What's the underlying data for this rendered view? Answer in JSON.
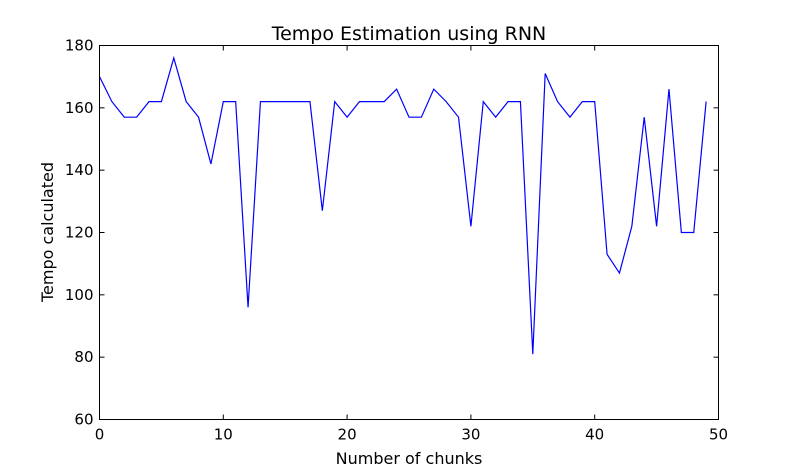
{
  "chart_data": {
    "type": "line",
    "title": "Tempo Estimation using RNN",
    "xlabel": "Number of chunks",
    "ylabel": "Tempo calculated",
    "xlim": [
      0,
      50
    ],
    "ylim": [
      60,
      180
    ],
    "xticks": [
      0,
      10,
      20,
      30,
      40,
      50
    ],
    "yticks": [
      60,
      80,
      100,
      120,
      140,
      160,
      180
    ],
    "grid": false,
    "line_color": "#0000ff",
    "series": [
      {
        "x": [
          0,
          1,
          2,
          3,
          4,
          5,
          6,
          7,
          8,
          9,
          10,
          11,
          12,
          13,
          14,
          15,
          16,
          17,
          18,
          19,
          20,
          21,
          22,
          23,
          24,
          25,
          26,
          27,
          28,
          29,
          30,
          31,
          32,
          33,
          34,
          35,
          36,
          37,
          38,
          39,
          40,
          41,
          42,
          43,
          44,
          45,
          46,
          47,
          48,
          49
        ],
        "values": [
          170,
          162,
          157,
          157,
          162,
          162,
          176,
          162,
          157,
          142,
          162,
          162,
          96,
          162,
          162,
          162,
          162,
          162,
          127,
          162,
          157,
          162,
          162,
          162,
          166,
          157,
          157,
          166,
          162,
          157,
          122,
          162,
          157,
          162,
          162,
          81,
          171,
          162,
          157,
          162,
          162,
          113,
          107,
          122,
          157,
          122,
          166,
          120,
          120,
          162
        ]
      }
    ]
  }
}
